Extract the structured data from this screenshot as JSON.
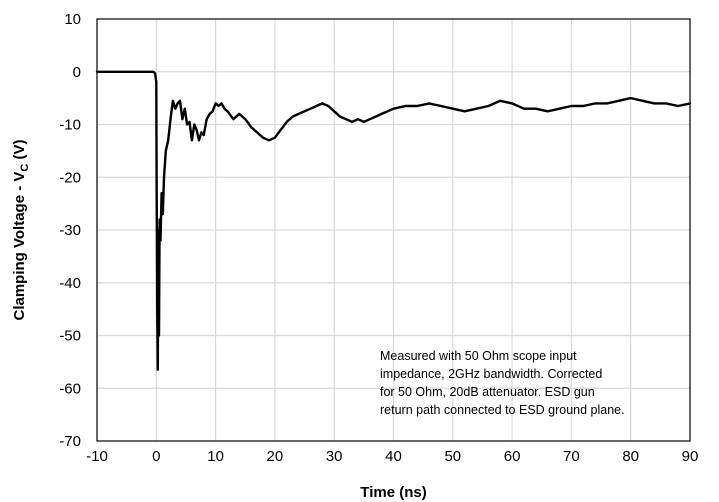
{
  "chart_data": {
    "type": "line",
    "xlabel": "Time (ns)",
    "ylabel": {
      "main": "Clamping Voltage - V",
      "sub": "C",
      "unit": " (V)"
    },
    "xlim": [
      -10,
      90
    ],
    "ylim": [
      -70,
      10
    ],
    "xticks": [
      "-10",
      "0",
      "10",
      "20",
      "30",
      "40",
      "50",
      "60",
      "70",
      "80",
      "90"
    ],
    "yticks": [
      "10",
      "0",
      "-10",
      "-20",
      "-30",
      "-40",
      "-50",
      "-60",
      "-70"
    ],
    "grid": true,
    "line_color": "#000000",
    "grid_color": "#d9d9d9",
    "series": [
      {
        "x": [
          -10,
          -2,
          -0.5,
          -0.2,
          0,
          0.05,
          0.15,
          0.25,
          0.35,
          0.45,
          0.55,
          0.7,
          0.9,
          1.1,
          1.3,
          1.6,
          2,
          2.4,
          2.8,
          3.2,
          3.6,
          4,
          4.4,
          4.8,
          5.2,
          5.6,
          6,
          6.4,
          6.8,
          7.2,
          7.6,
          8,
          8.5,
          9,
          9.5,
          10,
          10.5,
          11,
          11.5,
          12,
          13,
          14,
          15,
          16,
          17,
          18,
          19,
          20,
          21,
          22,
          23,
          24,
          25,
          26,
          27,
          28,
          29,
          30,
          31,
          32,
          33,
          34,
          35,
          36,
          37,
          38,
          39,
          40,
          42,
          44,
          46,
          48,
          50,
          52,
          54,
          56,
          58,
          60,
          62,
          64,
          66,
          68,
          70,
          72,
          74,
          76,
          78,
          80,
          82,
          84,
          86,
          88,
          90
        ],
        "y": [
          0,
          0,
          0,
          -0.3,
          -2,
          -20,
          -45,
          -56.5,
          -30,
          -50,
          -28,
          -32,
          -23,
          -27,
          -20,
          -15,
          -13,
          -9,
          -5.5,
          -7,
          -6,
          -5.5,
          -9,
          -7,
          -10,
          -9.5,
          -13,
          -10,
          -11,
          -13,
          -11.5,
          -12,
          -9,
          -8,
          -7.5,
          -6,
          -6.5,
          -6,
          -7,
          -7.5,
          -9,
          -8,
          -9,
          -10.5,
          -11.5,
          -12.5,
          -13,
          -12.5,
          -11,
          -9.5,
          -8.5,
          -8,
          -7.5,
          -7,
          -6.5,
          -6,
          -6.5,
          -7.5,
          -8.5,
          -9,
          -9.5,
          -9,
          -9.5,
          -9,
          -8.5,
          -8,
          -7.5,
          -7,
          -6.5,
          -6.5,
          -6,
          -6.5,
          -7,
          -7.5,
          -7,
          -6.5,
          -5.5,
          -6,
          -7,
          -7,
          -7.5,
          -7,
          -6.5,
          -6.5,
          -6,
          -6,
          -5.5,
          -5,
          -5.5,
          -6,
          -6,
          -6.5,
          -6
        ]
      }
    ],
    "annotation": [
      "Measured with 50 Ohm scope input",
      "impedance, 2GHz bandwidth. Corrected",
      "for 50 Ohm, 20dB attenuator. ESD gun",
      "return path connected to ESD ground plane."
    ]
  }
}
